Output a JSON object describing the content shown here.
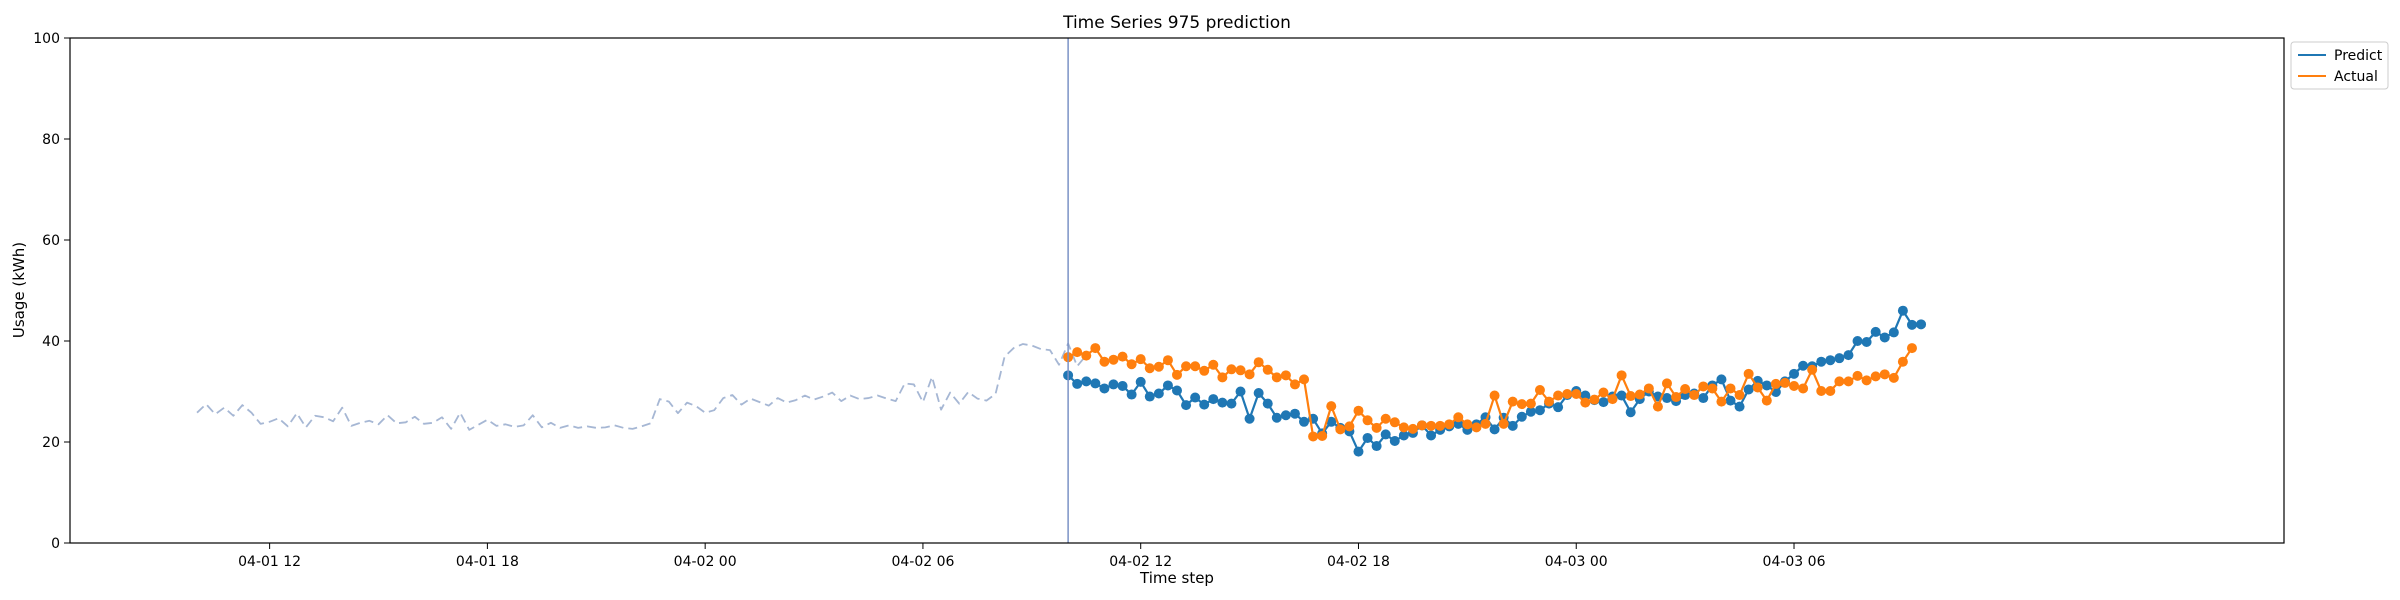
{
  "chart_data": {
    "type": "line",
    "title": "Time Series 975 prediction",
    "xlabel": "Time step",
    "ylabel": "Usage (kWh)",
    "ylim": [
      0,
      100
    ],
    "xlim": [
      "2024-04-01 06:30",
      "2024-04-03 19:30"
    ],
    "x_ticks": [
      "2024-04-01 12:00",
      "2024-04-01 18:00",
      "2024-04-02 00:00",
      "2024-04-02 06:00",
      "2024-04-02 12:00",
      "2024-04-02 18:00",
      "2024-04-03 00:00",
      "2024-04-03 06:00"
    ],
    "x_tick_labels": [
      "04-01 12",
      "04-01 18",
      "04-02 00",
      "04-02 06",
      "04-02 12",
      "04-02 18",
      "04-03 00",
      "04-03 06"
    ],
    "y_ticks": [
      0,
      20,
      40,
      60,
      80,
      100
    ],
    "forecast_start": "2024-04-02 10:00",
    "interval_minutes": 15,
    "grid": false,
    "legend_position": "outside-top-right",
    "series": [
      {
        "name": "",
        "style": "dashed",
        "color": "#a6b7d4",
        "x_start": "2024-04-01 10:00",
        "values": [
          25.8,
          27.5,
          25.5,
          26.8,
          25.2,
          27.3,
          25.8,
          23.6,
          24.0,
          24.7,
          23.1,
          25.7,
          22.9,
          25.2,
          24.9,
          24.1,
          26.8,
          23.2,
          23.8,
          24.2,
          23.5,
          25.3,
          23.7,
          23.9,
          25.0,
          23.6,
          23.8,
          24.9,
          22.6,
          25.8,
          22.4,
          23.4,
          24.4,
          23.2,
          23.5,
          23.0,
          23.3,
          25.3,
          22.9,
          23.8,
          22.8,
          23.3,
          22.8,
          23.1,
          22.8,
          22.9,
          23.3,
          22.8,
          22.6,
          23.1,
          23.7,
          28.5,
          28.0,
          25.7,
          27.8,
          27.1,
          25.8,
          26.3,
          28.7,
          29.3,
          27.4,
          28.6,
          27.9,
          27.2,
          28.7,
          27.8,
          28.3,
          29.2,
          28.4,
          29.0,
          29.8,
          28.1,
          29.2,
          28.5,
          28.7,
          29.2,
          28.6,
          28.1,
          31.6,
          31.4,
          27.9,
          32.9,
          26.4,
          29.8,
          27.6,
          29.9,
          28.6,
          28.2,
          29.5,
          36.9,
          38.6,
          39.4,
          39.1,
          38.4,
          38.2,
          35.3,
          39.5,
          35.0,
          37.2
        ]
      },
      {
        "name": "Predict",
        "style": "solid-markers",
        "color": "#1f77b4",
        "x_start": "2024-04-02 10:00",
        "values": [
          33.2,
          31.5,
          32.0,
          31.6,
          30.6,
          31.4,
          31.1,
          29.4,
          31.9,
          29.0,
          29.6,
          31.2,
          30.2,
          27.3,
          28.8,
          27.4,
          28.5,
          27.8,
          27.6,
          30.0,
          24.6,
          29.7,
          27.6,
          24.8,
          25.3,
          25.6,
          24.0,
          24.6,
          21.7,
          24.0,
          22.8,
          22.1,
          18.1,
          20.8,
          19.2,
          21.5,
          20.2,
          21.3,
          21.8,
          23.3,
          21.3,
          22.4,
          23.1,
          23.6,
          22.4,
          23.5,
          24.9,
          22.5,
          24.8,
          23.2,
          25.0,
          26.0,
          26.3,
          27.6,
          26.9,
          29.3,
          30.1,
          29.2,
          28.3,
          27.9,
          29.0,
          29.2,
          25.9,
          28.5,
          30.0,
          29.0,
          28.7,
          28.1,
          29.3,
          29.6,
          28.7,
          31.2,
          32.4,
          28.2,
          27.0,
          30.4,
          32.1,
          31.2,
          29.9,
          32.0,
          33.5,
          35.1,
          35.0,
          35.9,
          36.2,
          36.6,
          37.2,
          40.0,
          39.8,
          41.8,
          40.7,
          41.7,
          46.0,
          43.2,
          43.3
        ]
      },
      {
        "name": "Actual",
        "style": "solid-markers",
        "color": "#ff7f0e",
        "x_start": "2024-04-02 10:00",
        "values": [
          36.8,
          37.8,
          37.1,
          38.6,
          35.9,
          36.3,
          36.9,
          35.4,
          36.4,
          34.6,
          34.9,
          36.2,
          33.3,
          35.0,
          35.0,
          34.1,
          35.3,
          32.8,
          34.4,
          34.2,
          33.4,
          35.8,
          34.3,
          32.8,
          33.2,
          31.4,
          32.4,
          21.1,
          21.2,
          27.1,
          22.5,
          23.1,
          26.2,
          24.3,
          22.8,
          24.6,
          23.9,
          22.9,
          22.6,
          23.3,
          23.2,
          23.2,
          23.5,
          24.9,
          23.5,
          22.9,
          23.6,
          29.2,
          23.6,
          28.0,
          27.5,
          27.6,
          30.3,
          28.0,
          29.2,
          29.5,
          29.5,
          27.8,
          28.4,
          29.8,
          28.5,
          33.2,
          29.1,
          29.4,
          30.6,
          27.0,
          31.6,
          28.9,
          30.5,
          29.3,
          31.0,
          30.6,
          28.0,
          30.6,
          29.3,
          33.5,
          30.8,
          28.2,
          31.5,
          31.7,
          31.1,
          30.6,
          34.3,
          30.1,
          30.1,
          32.0,
          32.0,
          33.1,
          32.2,
          33.0,
          33.4,
          32.7,
          35.9,
          38.6
        ]
      }
    ]
  }
}
